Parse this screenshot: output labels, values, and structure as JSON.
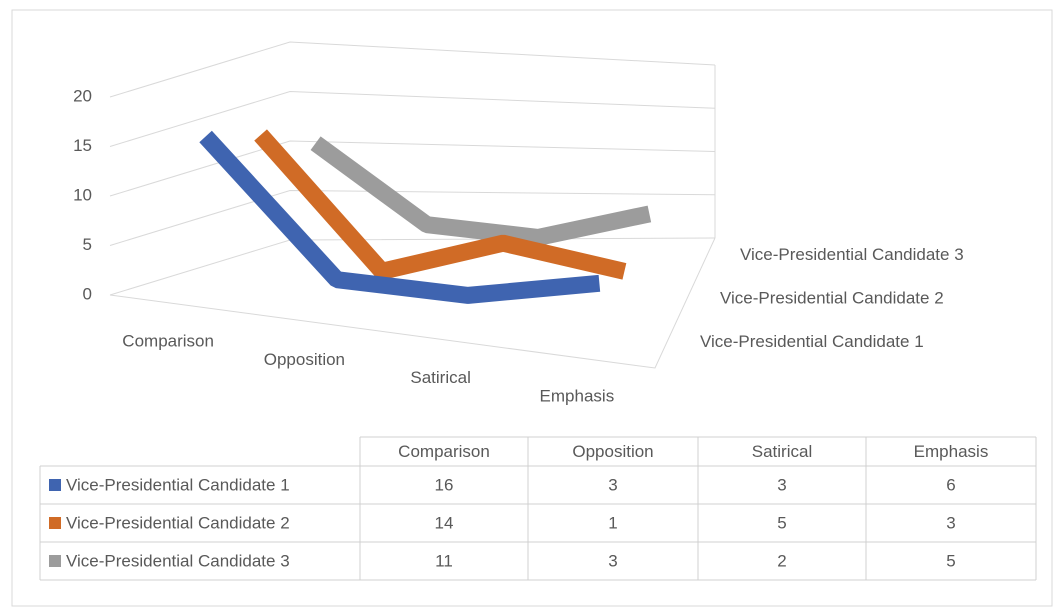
{
  "chart_data": {
    "type": "line3d",
    "categories": [
      "Comparison",
      "Opposition",
      "Satirical",
      "Emphasis"
    ],
    "series": [
      {
        "name": "Vice-Presidential Candidate 1",
        "color": "#3f64b0",
        "values": [
          16,
          3,
          3,
          6
        ]
      },
      {
        "name": "Vice-Presidential Candidate 2",
        "color": "#d06b26",
        "values": [
          14,
          1,
          5,
          3
        ]
      },
      {
        "name": "Vice-Presidential Candidate 3",
        "color": "#9c9c9c",
        "values": [
          11,
          3,
          2,
          5
        ]
      }
    ],
    "ylim": [
      0,
      20
    ],
    "yticks": [
      0,
      5,
      10,
      15,
      20
    ],
    "grid": true,
    "data_table": true
  }
}
